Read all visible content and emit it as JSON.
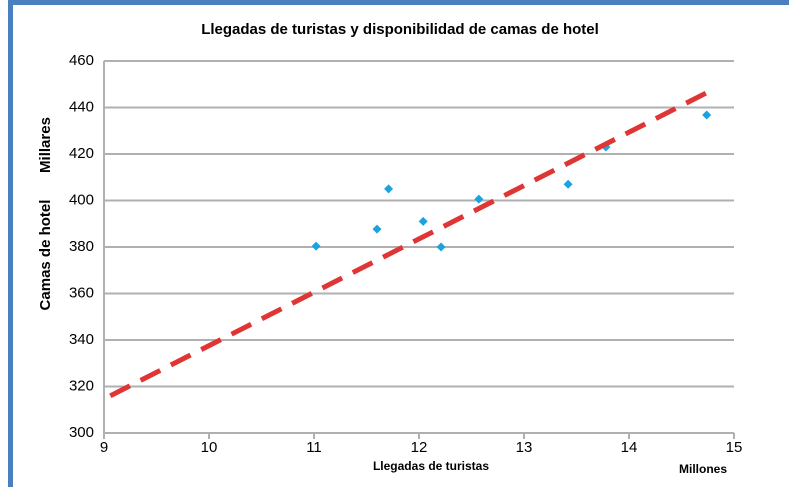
{
  "chart_data": {
    "type": "scatter",
    "title": "Llegadas de turistas y disponibilidad de camas de hotel",
    "x_label": "Llegadas de turistas",
    "x_unit": "Millones",
    "y_label": "Camas de hotel",
    "y_unit": "Millares",
    "series": [
      {
        "color": "#1ba3e0",
        "x": [
          11.02,
          11.6,
          11.71,
          12.04,
          12.21,
          12.57,
          13.42,
          13.78,
          14.74
        ],
        "values": [
          380.4,
          387.7,
          405,
          391,
          380,
          400.6,
          407,
          423,
          436.8
        ]
      },
      {
        "type": "line",
        "color": "#e03535",
        "x": [
          9.06,
          14.79
        ],
        "values": [
          316,
          447.5
        ]
      }
    ],
    "xlim": [
      9,
      15
    ],
    "xticks": [
      9,
      10,
      11,
      12,
      13,
      14,
      15
    ],
    "ylim": [
      300,
      460
    ],
    "yticks": [
      300,
      320,
      340,
      360,
      380,
      400,
      420,
      440,
      460
    ],
    "grid": true
  }
}
